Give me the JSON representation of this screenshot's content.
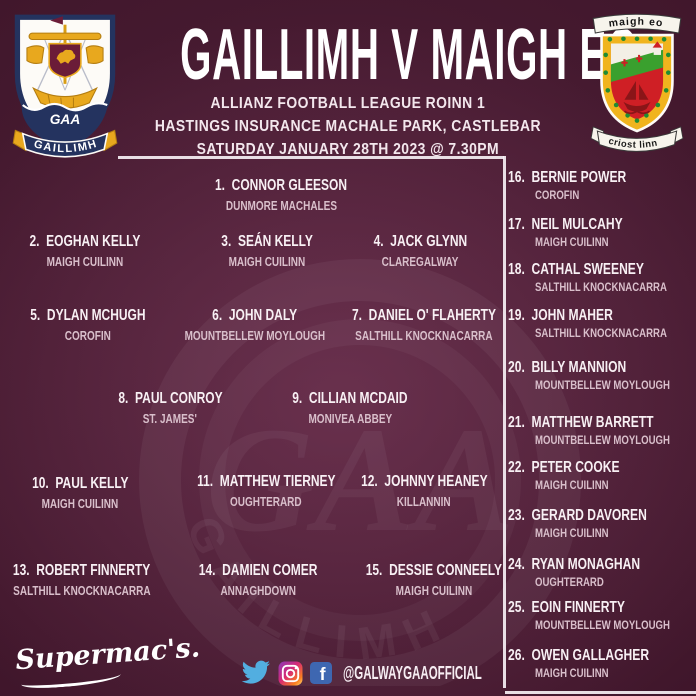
{
  "header": {
    "title": "GAILLIMH V MAIGH EO",
    "competition": "ALLIANZ FOOTBALL LEAGUE ROINN 1",
    "venue": "HASTINGS INSURANCE MACHALE PARK, CASTLEBAR",
    "datetime": "SATURDAY JANUARY 28TH 2023 @ 7.30PM",
    "home_crest": {
      "banner": "GAILLIMH",
      "gaa_mark": "GAA"
    },
    "away_crest": {
      "top_banner": "maigh eo",
      "bottom_banner": "criost linn"
    }
  },
  "starters": [
    {
      "number": "1",
      "name": "CONNOR GLEESON",
      "club": "DUNMORE MACHALES"
    },
    {
      "number": "2",
      "name": "EOGHAN KELLY",
      "club": "MAIGH CUILINN"
    },
    {
      "number": "3",
      "name": "SEÁN KELLY",
      "club": "MAIGH CUILINN"
    },
    {
      "number": "4",
      "name": "JACK GLYNN",
      "club": "CLAREGALWAY"
    },
    {
      "number": "5",
      "name": "DYLAN MCHUGH",
      "club": "COROFIN"
    },
    {
      "number": "6",
      "name": "JOHN DALY",
      "club": "MOUNTBELLEW MOYLOUGH"
    },
    {
      "number": "7",
      "name": "DANIEL O' FLAHERTY",
      "club": "SALTHILL KNOCKNACARRA"
    },
    {
      "number": "8",
      "name": "PAUL CONROY",
      "club": "ST. JAMES'"
    },
    {
      "number": "9",
      "name": "CILLIAN MCDAID",
      "club": "MONIVEA ABBEY"
    },
    {
      "number": "10",
      "name": "PAUL KELLY",
      "club": "MAIGH CUILINN"
    },
    {
      "number": "11",
      "name": "MATTHEW TIERNEY",
      "club": "OUGHTERARD"
    },
    {
      "number": "12",
      "name": "JOHNNY HEANEY",
      "club": "KILLANNIN"
    },
    {
      "number": "13",
      "name": "ROBERT FINNERTY",
      "club": "SALTHILL KNOCKNACARRA"
    },
    {
      "number": "14",
      "name": "DAMIEN COMER",
      "club": "ANNAGHDOWN"
    },
    {
      "number": "15",
      "name": "DESSIE CONNEELY",
      "club": "MAIGH CUILINN"
    }
  ],
  "subs": [
    {
      "number": "16",
      "name": "BERNIE POWER",
      "club": "COROFIN"
    },
    {
      "number": "17",
      "name": "NEIL MULCAHY",
      "club": "MAIGH CUILINN"
    },
    {
      "number": "18",
      "name": "CATHAL SWEENEY",
      "club": "SALTHILL KNOCKNACARRA"
    },
    {
      "number": "19",
      "name": "JOHN MAHER",
      "club": "SALTHILL KNOCKNACARRA"
    },
    {
      "number": "20",
      "name": "BILLY MANNION",
      "club": "MOUNTBELLEW MOYLOUGH"
    },
    {
      "number": "21",
      "name": "MATTHEW BARRETT",
      "club": "MOUNTBELLEW MOYLOUGH"
    },
    {
      "number": "22",
      "name": "PETER COOKE",
      "club": "MAIGH CUILINN"
    },
    {
      "number": "23",
      "name": "GERARD DAVOREN",
      "club": "MAIGH CUILINN"
    },
    {
      "number": "24",
      "name": "RYAN MONAGHAN",
      "club": "OUGHTERARD"
    },
    {
      "number": "25",
      "name": "EOIN FINNERTY",
      "club": "MOUNTBELLEW MOYLOUGH"
    },
    {
      "number": "26",
      "name": "OWEN GALLAGHER",
      "club": "MAIGH CUILINN"
    }
  ],
  "footer": {
    "sponsor": "Supermac's.",
    "social_handle": "@GALWAYGAAOFFICIAL",
    "icons": [
      "twitter-icon",
      "instagram-icon",
      "facebook-icon"
    ]
  },
  "colors": {
    "background_maroon": "#41172c",
    "text_white": "#f8f0f4",
    "club_text": "#d9bfcb",
    "galway_navy": "#24335f",
    "gaa_gold": "#e8a81e",
    "mayo_red": "#cf1f25",
    "mayo_green": "#3aa02e",
    "mayo_gold": "#f0b41e",
    "twitter_blue": "#52aee0",
    "facebook_blue": "#3e67b1"
  }
}
